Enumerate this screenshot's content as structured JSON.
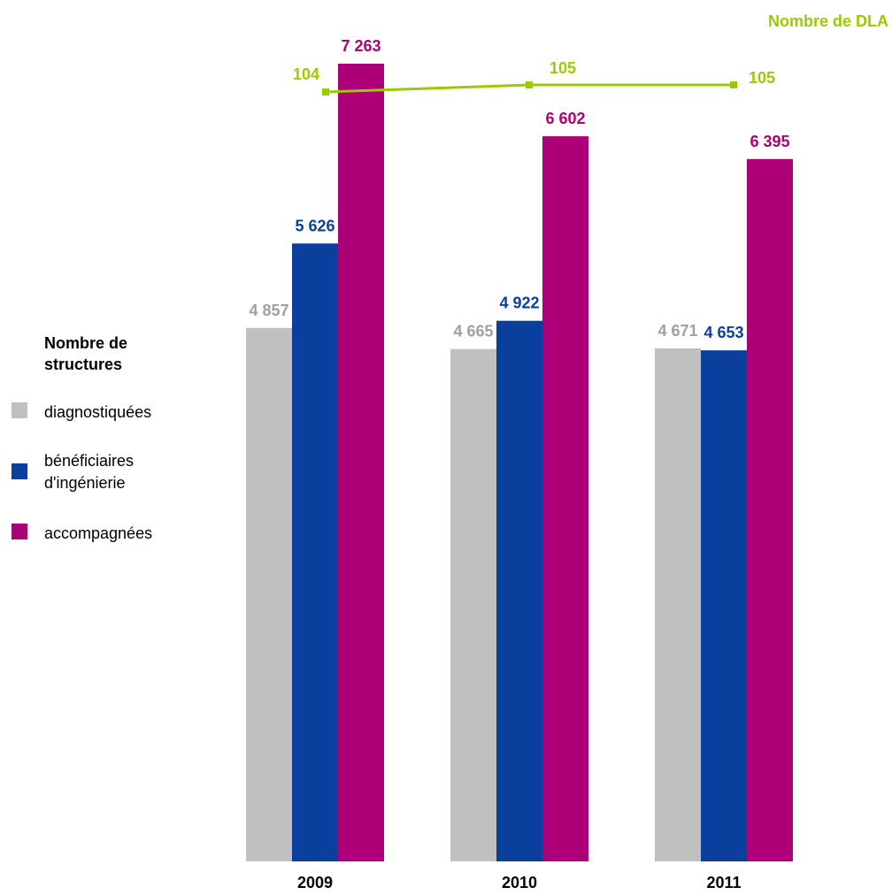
{
  "chart_data": {
    "type": "bar",
    "categories": [
      "2009",
      "2010",
      "2011"
    ],
    "series": [
      {
        "name": "diagnostiquées",
        "color": "#c0c0c0",
        "values": [
          4857,
          4665,
          4671
        ],
        "labels": [
          "4 857",
          "4 665",
          "4 671"
        ]
      },
      {
        "name": "bénéficiaires d'ingénierie",
        "name_lines": [
          "bénéficiaires",
          "d'ingénierie"
        ],
        "color": "#0a3f9e",
        "values": [
          5626,
          4922,
          4653
        ],
        "labels": [
          "5 626",
          "4 922",
          "4 653"
        ]
      },
      {
        "name": "accompagnées",
        "color": "#ad0078",
        "values": [
          7263,
          6602,
          6395
        ],
        "labels": [
          "7 263",
          "6 602",
          "6 395"
        ]
      }
    ],
    "line_series": {
      "name": "Nombre de DLA",
      "color": "#99cc00",
      "values": [
        104,
        105,
        105
      ],
      "labels": [
        "104",
        "105",
        "105"
      ]
    },
    "legend_title": "Nombre de structures",
    "legend_title_lines": [
      "Nombre de",
      "structures"
    ],
    "title": "",
    "xlabel": "",
    "ylabel": "",
    "ylim": [
      0,
      7263
    ],
    "grid": false,
    "legend_placement": "left"
  }
}
